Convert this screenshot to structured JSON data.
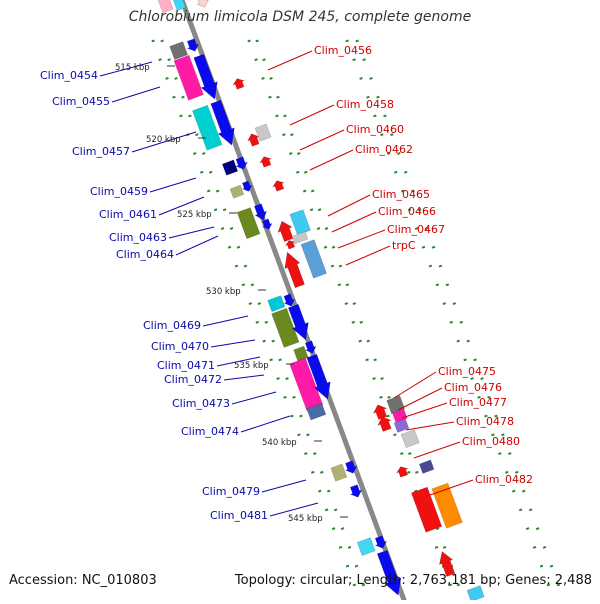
{
  "title": "Chlorobium limicola DSM 245, complete genome",
  "accession_label": "Accession: NC_010803",
  "summary_label": "Topology: circular; Length: 2,763,181 bp; Genes: 2,488",
  "colors": {
    "backbone": "#888888",
    "forward_label": "#0a0aa8",
    "reverse_label": "#d00000",
    "ruler_tick": "#2a8a2a",
    "gene_blue": "#0a0af0",
    "gene_red": "#f01010"
  },
  "scale_labels": [
    "515 kbp",
    "520 kbp",
    "525 kbp",
    "530 kbp",
    "535 kbp",
    "540 kbp",
    "545 kbp"
  ],
  "forward_genes": [
    "Clim_0454",
    "Clim_0455",
    "Clim_0457",
    "Clim_0459",
    "Clim_0461",
    "Clim_0463",
    "Clim_0464",
    "Clim_0469",
    "Clim_0470",
    "Clim_0471",
    "Clim_0472",
    "Clim_0473",
    "Clim_0474",
    "Clim_0479",
    "Clim_0481"
  ],
  "reverse_genes": [
    "Clim_0456",
    "Clim_0458",
    "Clim_0460",
    "Clim_0462",
    "Clim_0465",
    "Clim_0466",
    "Clim_0467",
    "trpC",
    "Clim_0475",
    "Clim_0476",
    "Clim_0477",
    "Clim_0478",
    "Clim_0480",
    "Clim_0482"
  ]
}
